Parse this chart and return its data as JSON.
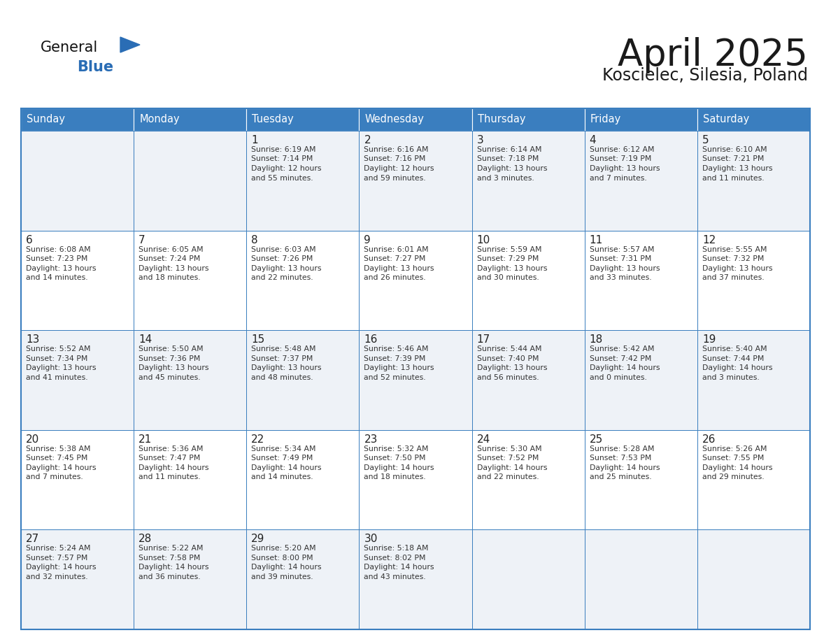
{
  "title": "April 2025",
  "subtitle": "Koscielec, Silesia, Poland",
  "days_of_week": [
    "Sunday",
    "Monday",
    "Tuesday",
    "Wednesday",
    "Thursday",
    "Friday",
    "Saturday"
  ],
  "header_bg": "#3a7ebf",
  "header_text": "#ffffff",
  "cell_bg_light": "#eef2f7",
  "cell_bg_white": "#ffffff",
  "cell_border": "#3a7ebf",
  "day_num_color": "#222222",
  "text_color": "#333333",
  "title_color": "#1a1a1a",
  "subtitle_color": "#1a1a1a",
  "logo_general_color": "#111111",
  "logo_blue_color": "#2a6db5",
  "weeks": [
    [
      {
        "date": "",
        "sunrise": "",
        "sunset": "",
        "daylight": ""
      },
      {
        "date": "",
        "sunrise": "",
        "sunset": "",
        "daylight": ""
      },
      {
        "date": "1",
        "sunrise": "6:19 AM",
        "sunset": "7:14 PM",
        "daylight": "12 hours\nand 55 minutes."
      },
      {
        "date": "2",
        "sunrise": "6:16 AM",
        "sunset": "7:16 PM",
        "daylight": "12 hours\nand 59 minutes."
      },
      {
        "date": "3",
        "sunrise": "6:14 AM",
        "sunset": "7:18 PM",
        "daylight": "13 hours\nand 3 minutes."
      },
      {
        "date": "4",
        "sunrise": "6:12 AM",
        "sunset": "7:19 PM",
        "daylight": "13 hours\nand 7 minutes."
      },
      {
        "date": "5",
        "sunrise": "6:10 AM",
        "sunset": "7:21 PM",
        "daylight": "13 hours\nand 11 minutes."
      }
    ],
    [
      {
        "date": "6",
        "sunrise": "6:08 AM",
        "sunset": "7:23 PM",
        "daylight": "13 hours\nand 14 minutes."
      },
      {
        "date": "7",
        "sunrise": "6:05 AM",
        "sunset": "7:24 PM",
        "daylight": "13 hours\nand 18 minutes."
      },
      {
        "date": "8",
        "sunrise": "6:03 AM",
        "sunset": "7:26 PM",
        "daylight": "13 hours\nand 22 minutes."
      },
      {
        "date": "9",
        "sunrise": "6:01 AM",
        "sunset": "7:27 PM",
        "daylight": "13 hours\nand 26 minutes."
      },
      {
        "date": "10",
        "sunrise": "5:59 AM",
        "sunset": "7:29 PM",
        "daylight": "13 hours\nand 30 minutes."
      },
      {
        "date": "11",
        "sunrise": "5:57 AM",
        "sunset": "7:31 PM",
        "daylight": "13 hours\nand 33 minutes."
      },
      {
        "date": "12",
        "sunrise": "5:55 AM",
        "sunset": "7:32 PM",
        "daylight": "13 hours\nand 37 minutes."
      }
    ],
    [
      {
        "date": "13",
        "sunrise": "5:52 AM",
        "sunset": "7:34 PM",
        "daylight": "13 hours\nand 41 minutes."
      },
      {
        "date": "14",
        "sunrise": "5:50 AM",
        "sunset": "7:36 PM",
        "daylight": "13 hours\nand 45 minutes."
      },
      {
        "date": "15",
        "sunrise": "5:48 AM",
        "sunset": "7:37 PM",
        "daylight": "13 hours\nand 48 minutes."
      },
      {
        "date": "16",
        "sunrise": "5:46 AM",
        "sunset": "7:39 PM",
        "daylight": "13 hours\nand 52 minutes."
      },
      {
        "date": "17",
        "sunrise": "5:44 AM",
        "sunset": "7:40 PM",
        "daylight": "13 hours\nand 56 minutes."
      },
      {
        "date": "18",
        "sunrise": "5:42 AM",
        "sunset": "7:42 PM",
        "daylight": "14 hours\nand 0 minutes."
      },
      {
        "date": "19",
        "sunrise": "5:40 AM",
        "sunset": "7:44 PM",
        "daylight": "14 hours\nand 3 minutes."
      }
    ],
    [
      {
        "date": "20",
        "sunrise": "5:38 AM",
        "sunset": "7:45 PM",
        "daylight": "14 hours\nand 7 minutes."
      },
      {
        "date": "21",
        "sunrise": "5:36 AM",
        "sunset": "7:47 PM",
        "daylight": "14 hours\nand 11 minutes."
      },
      {
        "date": "22",
        "sunrise": "5:34 AM",
        "sunset": "7:49 PM",
        "daylight": "14 hours\nand 14 minutes."
      },
      {
        "date": "23",
        "sunrise": "5:32 AM",
        "sunset": "7:50 PM",
        "daylight": "14 hours\nand 18 minutes."
      },
      {
        "date": "24",
        "sunrise": "5:30 AM",
        "sunset": "7:52 PM",
        "daylight": "14 hours\nand 22 minutes."
      },
      {
        "date": "25",
        "sunrise": "5:28 AM",
        "sunset": "7:53 PM",
        "daylight": "14 hours\nand 25 minutes."
      },
      {
        "date": "26",
        "sunrise": "5:26 AM",
        "sunset": "7:55 PM",
        "daylight": "14 hours\nand 29 minutes."
      }
    ],
    [
      {
        "date": "27",
        "sunrise": "5:24 AM",
        "sunset": "7:57 PM",
        "daylight": "14 hours\nand 32 minutes."
      },
      {
        "date": "28",
        "sunrise": "5:22 AM",
        "sunset": "7:58 PM",
        "daylight": "14 hours\nand 36 minutes."
      },
      {
        "date": "29",
        "sunrise": "5:20 AM",
        "sunset": "8:00 PM",
        "daylight": "14 hours\nand 39 minutes."
      },
      {
        "date": "30",
        "sunrise": "5:18 AM",
        "sunset": "8:02 PM",
        "daylight": "14 hours\nand 43 minutes."
      },
      {
        "date": "",
        "sunrise": "",
        "sunset": "",
        "daylight": ""
      },
      {
        "date": "",
        "sunrise": "",
        "sunset": "",
        "daylight": ""
      },
      {
        "date": "",
        "sunrise": "",
        "sunset": "",
        "daylight": ""
      }
    ]
  ]
}
